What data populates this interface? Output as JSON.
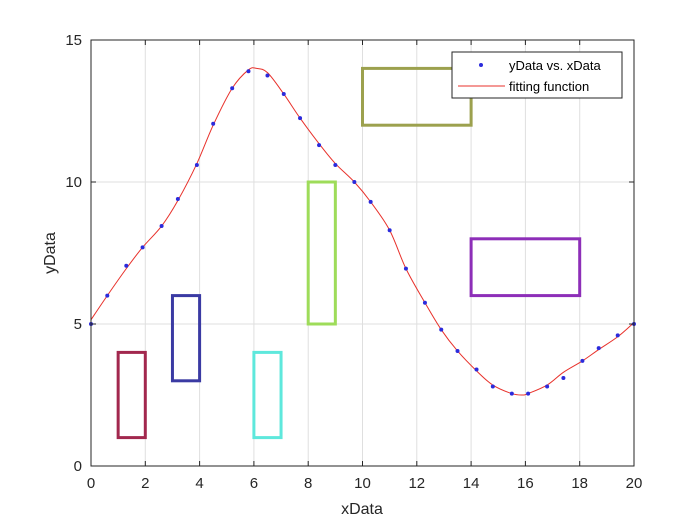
{
  "chart_data": {
    "type": "scatter",
    "xlabel": "xData",
    "ylabel": "yData",
    "xlim": [
      0,
      20
    ],
    "ylim": [
      0,
      15
    ],
    "xticks": [
      0,
      2,
      4,
      6,
      8,
      10,
      12,
      14,
      16,
      18,
      20
    ],
    "yticks": [
      0,
      5,
      10,
      15
    ],
    "grid": true,
    "legend_position": "top-right",
    "series": [
      {
        "name": "yData vs. xData",
        "kind": "points",
        "color": "#2b2bdc",
        "x": [
          0,
          0.6,
          1.3,
          1.9,
          2.6,
          3.2,
          3.9,
          4.5,
          5.2,
          5.8,
          6.5,
          7.1,
          7.7,
          8.4,
          9.0,
          9.7,
          10.3,
          11.0,
          11.6,
          12.3,
          12.9,
          13.5,
          14.2,
          14.8,
          15.5,
          16.1,
          16.8,
          17.4,
          18.1,
          18.7,
          19.4,
          20.0
        ],
        "y": [
          5.0,
          6.0,
          7.05,
          7.7,
          8.45,
          9.4,
          10.6,
          12.05,
          13.3,
          13.9,
          13.75,
          13.1,
          12.25,
          11.3,
          10.6,
          10.0,
          9.3,
          8.3,
          6.95,
          5.75,
          4.8,
          4.05,
          3.4,
          2.8,
          2.55,
          2.55,
          2.8,
          3.1,
          3.7,
          4.15,
          4.6,
          5.0
        ]
      },
      {
        "name": "fitting function",
        "kind": "line",
        "color": "#e8312b",
        "x": [
          0,
          0.6,
          1.3,
          1.9,
          2.6,
          3.2,
          3.9,
          4.5,
          5.2,
          5.8,
          6.1,
          6.5,
          7.1,
          7.7,
          8.4,
          9.0,
          9.7,
          10.3,
          11.0,
          11.6,
          12.3,
          12.9,
          13.5,
          14.2,
          14.8,
          15.5,
          15.9,
          16.1,
          16.8,
          17.4,
          18.1,
          18.7,
          19.4,
          20.0
        ],
        "y": [
          5.15,
          6.0,
          6.95,
          7.7,
          8.45,
          9.35,
          10.65,
          12.0,
          13.3,
          13.95,
          14.0,
          13.85,
          13.1,
          12.25,
          11.35,
          10.65,
          10.0,
          9.3,
          8.3,
          6.95,
          5.75,
          4.8,
          4.05,
          3.35,
          2.85,
          2.55,
          2.5,
          2.55,
          2.85,
          3.3,
          3.7,
          4.1,
          4.55,
          5.05
        ]
      }
    ],
    "rectangles": [
      {
        "x": [
          1,
          2
        ],
        "y": [
          1,
          4
        ],
        "color": "#a2284e"
      },
      {
        "x": [
          3,
          4
        ],
        "y": [
          3,
          6
        ],
        "color": "#3a3aa3"
      },
      {
        "x": [
          6,
          7
        ],
        "y": [
          1,
          4
        ],
        "color": "#5ee8dc"
      },
      {
        "x": [
          8,
          9
        ],
        "y": [
          5,
          10
        ],
        "color": "#9edc5a"
      },
      {
        "x": [
          10,
          14
        ],
        "y": [
          12,
          14
        ],
        "color": "#9ca14e"
      },
      {
        "x": [
          14,
          18
        ],
        "y": [
          6,
          8
        ],
        "color": "#8d2eb8"
      }
    ]
  },
  "colors": {
    "axes": "#262626",
    "grid": "#dfdfdf",
    "background": "#ffffff"
  }
}
